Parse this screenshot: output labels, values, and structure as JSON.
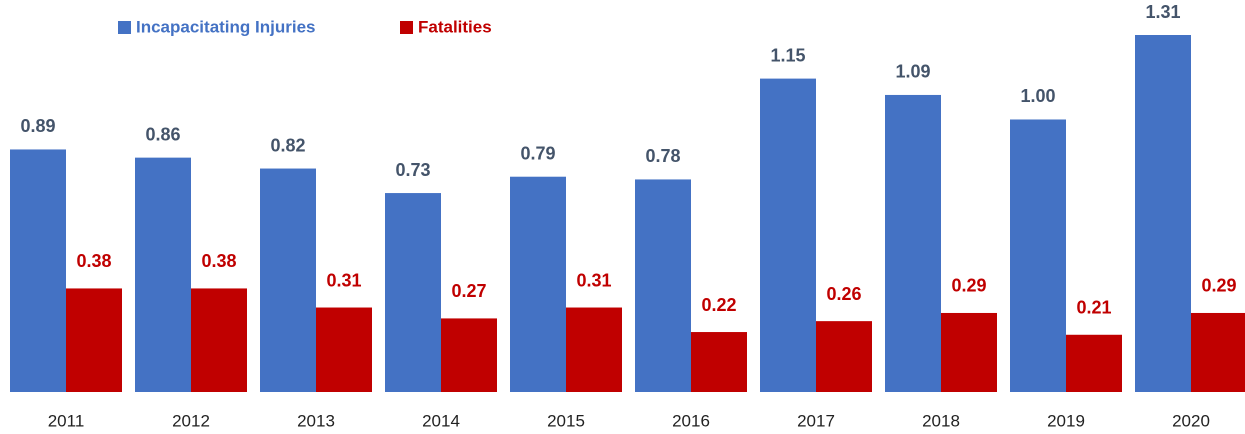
{
  "chart_data": {
    "type": "bar",
    "categories": [
      "2011",
      "2012",
      "2013",
      "2014",
      "2015",
      "2016",
      "2017",
      "2018",
      "2019",
      "2020"
    ],
    "series": [
      {
        "name": "Incapacitating Injuries",
        "color": "#4472c4",
        "values": [
          0.89,
          0.86,
          0.82,
          0.73,
          0.79,
          0.78,
          1.15,
          1.09,
          1.0,
          1.31
        ],
        "value_labels": [
          "0.89",
          "0.86",
          "0.82",
          "0.73",
          "0.79",
          "0.78",
          "1.15",
          "1.09",
          "1.00",
          "1.31"
        ]
      },
      {
        "name": "Fatalities",
        "color": "#c00000",
        "values": [
          0.38,
          0.38,
          0.31,
          0.27,
          0.31,
          0.22,
          0.26,
          0.29,
          0.21,
          0.29
        ],
        "value_labels": [
          "0.38",
          "0.38",
          "0.31",
          "0.27",
          "0.31",
          "0.22",
          "0.26",
          "0.29",
          "0.21",
          "0.29"
        ]
      }
    ],
    "legend": "top-left"
  }
}
